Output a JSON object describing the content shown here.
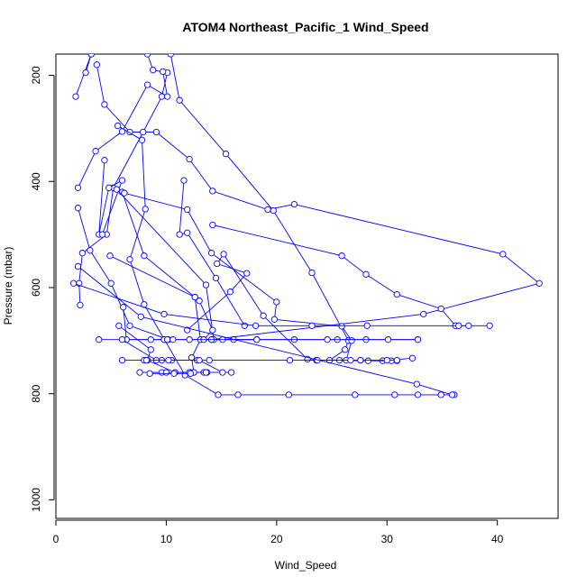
{
  "chart_data": {
    "type": "line",
    "title": "ATOM4 Northeast_Pacific_1 Wind_Speed",
    "xlabel": "Wind_Speed",
    "ylabel": "Pressure (mbar)",
    "xlim": [
      0,
      45.5
    ],
    "ylim": [
      1035,
      160
    ],
    "y_inverted": true,
    "x_ticks": [
      0,
      10,
      20,
      30,
      40
    ],
    "y_ticks": [
      200,
      400,
      600,
      800,
      1000
    ],
    "grid": false,
    "legend": "none",
    "line_color": "#0000ff",
    "marker": "open-circle",
    "series": [
      {
        "points": [
          [
            1.8,
            240
          ],
          [
            3.2,
            160
          ]
        ]
      },
      {
        "points": [
          [
            2.7,
            195
          ],
          [
            3.2,
            160
          ]
        ]
      },
      {
        "points": [
          [
            3.7,
            180
          ],
          [
            4.4,
            255
          ],
          [
            6.7,
            307
          ],
          [
            9.1,
            307
          ],
          [
            12.1,
            358
          ],
          [
            14.2,
            418
          ],
          [
            19.2,
            453
          ],
          [
            21.6,
            443
          ],
          [
            40.5,
            537
          ],
          [
            43.8,
            592
          ],
          [
            33.3,
            650
          ],
          [
            14.1,
            698
          ],
          [
            3.9,
            698
          ]
        ]
      },
      {
        "points": [
          [
            8.3,
            160
          ],
          [
            8.8,
            190
          ],
          [
            10.1,
            195
          ],
          [
            9.6,
            240
          ],
          [
            7.9,
            307
          ],
          [
            5.2,
            412
          ],
          [
            4.6,
            500
          ],
          [
            2.4,
            535
          ],
          [
            2.1,
            592
          ],
          [
            2.2,
            633
          ]
        ]
      },
      {
        "points": [
          [
            9.7,
            193
          ],
          [
            10.1,
            240
          ],
          [
            8.3,
            218
          ],
          [
            6.0,
            306
          ],
          [
            3.6,
            343
          ],
          [
            2.0,
            412
          ]
        ]
      },
      {
        "points": [
          [
            10.4,
            160
          ],
          [
            11.2,
            247
          ],
          [
            15.4,
            348
          ],
          [
            19.7,
            455
          ],
          [
            23.2,
            572
          ],
          [
            26.5,
            700
          ],
          [
            26.2,
            717
          ],
          [
            24.8,
            737
          ],
          [
            29.6,
            738
          ],
          [
            32.3,
            733
          ]
        ]
      },
      {
        "points": [
          [
            5.6,
            295
          ],
          [
            7.8,
            322
          ],
          [
            8.1,
            452
          ],
          [
            6.7,
            547
          ],
          [
            8.0,
            632
          ],
          [
            11.7,
            765
          ],
          [
            14.7,
            802
          ],
          [
            16.5,
            802
          ],
          [
            21.1,
            802
          ],
          [
            27.1,
            802
          ],
          [
            30.7,
            802
          ],
          [
            32.8,
            802
          ],
          [
            34.9,
            802
          ],
          [
            36.1,
            802
          ]
        ]
      },
      {
        "points": [
          [
            2.0,
            450
          ],
          [
            3.1,
            530
          ],
          [
            5.0,
            592
          ],
          [
            6.7,
            672
          ],
          [
            10.2,
            698
          ]
        ]
      },
      {
        "points": [
          [
            4.4,
            360
          ],
          [
            3.9,
            500
          ],
          [
            4.8,
            412
          ],
          [
            6.0,
            398
          ],
          [
            4.2,
            500
          ]
        ]
      },
      {
        "points": [
          [
            6.0,
            420
          ],
          [
            8.0,
            540
          ],
          [
            12.6,
            618
          ],
          [
            13.1,
            698
          ],
          [
            12.3,
            732
          ],
          [
            12.5,
            760
          ],
          [
            13.4,
            760
          ]
        ]
      },
      {
        "points": [
          [
            5.7,
            672
          ],
          [
            8.6,
            717
          ],
          [
            8.3,
            737
          ],
          [
            10.8,
            760
          ],
          [
            12.2,
            760
          ],
          [
            13.7,
            760
          ],
          [
            15.9,
            760
          ]
        ]
      },
      {
        "points": [
          [
            11.6,
            398
          ],
          [
            11.2,
            500
          ],
          [
            11.9,
            497
          ],
          [
            14.5,
            582
          ],
          [
            17.1,
            672
          ]
        ]
      },
      {
        "points": [
          [
            14.2,
            482
          ],
          [
            25.9,
            540
          ],
          [
            28.1,
            575
          ],
          [
            30.9,
            613
          ],
          [
            34.9,
            640
          ],
          [
            36.2,
            672
          ],
          [
            39.3,
            672
          ]
        ]
      },
      {
        "points": [
          [
            11.9,
            680
          ],
          [
            15.8,
            608
          ],
          [
            17.3,
            573
          ],
          [
            14.6,
            555
          ],
          [
            15.2,
            537
          ],
          [
            18.8,
            653
          ],
          [
            22.8,
            735
          ],
          [
            23.6,
            737
          ],
          [
            25.7,
            737
          ],
          [
            28.3,
            738
          ],
          [
            30.4,
            738
          ],
          [
            30.9,
            738
          ]
        ]
      },
      {
        "points": [
          [
            6.2,
            422
          ],
          [
            11.9,
            453
          ],
          [
            14.1,
            535
          ],
          [
            20.0,
            627
          ],
          [
            19.8,
            660
          ],
          [
            25.9,
            673
          ],
          [
            26.8,
            700
          ],
          [
            26.3,
            737
          ],
          [
            27.6,
            737
          ]
        ]
      },
      {
        "points": [
          [
            5.5,
            415
          ],
          [
            13.6,
            595
          ],
          [
            14.3,
            698
          ],
          [
            16.1,
            698
          ],
          [
            18.2,
            698
          ],
          [
            21.6,
            698
          ],
          [
            25.5,
            698
          ],
          [
            28.1,
            698
          ],
          [
            32.8,
            698
          ]
        ]
      },
      {
        "points": [
          [
            4.9,
            540
          ],
          [
            12.6,
            618
          ],
          [
            13.0,
            625
          ],
          [
            14.2,
            680
          ],
          [
            13.4,
            698
          ],
          [
            14.1,
            698
          ],
          [
            15.1,
            698
          ],
          [
            24.6,
            698
          ],
          [
            30.1,
            698
          ],
          [
            32.8,
            698
          ]
        ]
      },
      {
        "points": [
          [
            6.1,
            637
          ],
          [
            6.4,
            698
          ],
          [
            8.6,
            698
          ],
          [
            9.8,
            698
          ],
          [
            9.8,
            698
          ],
          [
            10.1,
            698
          ],
          [
            10.6,
            698
          ],
          [
            12.1,
            698
          ],
          [
            18.2,
            698
          ]
        ]
      },
      {
        "points": [
          [
            1.6,
            592
          ],
          [
            9.8,
            650
          ],
          [
            18.1,
            672
          ],
          [
            23.2,
            672
          ],
          [
            28.2,
            672
          ],
          [
            36.5,
            672
          ],
          [
            37.4,
            672
          ]
        ]
      },
      {
        "points": [
          [
            6.0,
            698
          ],
          [
            9.1,
            737
          ],
          [
            9.6,
            737
          ],
          [
            10.5,
            737
          ],
          [
            12.8,
            737
          ],
          [
            13.9,
            737
          ],
          [
            21.2,
            737
          ],
          [
            23.7,
            737
          ],
          [
            26.7,
            737
          ],
          [
            27.6,
            737
          ],
          [
            30.0,
            737
          ],
          [
            30.9,
            737
          ]
        ]
      },
      {
        "points": [
          [
            6.0,
            737
          ],
          [
            8.0,
            737
          ],
          [
            8.2,
            737
          ],
          [
            10.2,
            737
          ],
          [
            13.0,
            737
          ],
          [
            15.1,
            760
          ]
        ]
      },
      {
        "points": [
          [
            7.6,
            760
          ],
          [
            9.6,
            760
          ],
          [
            10.0,
            760
          ],
          [
            12.1,
            760
          ],
          [
            12.5,
            760
          ],
          [
            13.6,
            760
          ]
        ]
      },
      {
        "points": [
          [
            2.0,
            560
          ],
          [
            7.7,
            655
          ],
          [
            32.7,
            782
          ],
          [
            35.9,
            802
          ]
        ]
      },
      {
        "points": [
          [
            8.5,
            762
          ],
          [
            10.7,
            762
          ],
          [
            12.2,
            762
          ]
        ]
      }
    ]
  }
}
